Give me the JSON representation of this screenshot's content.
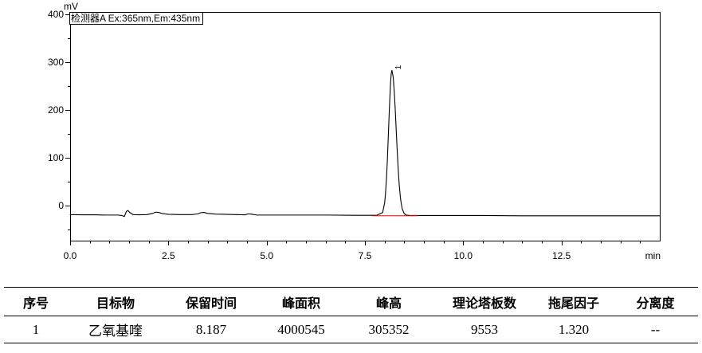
{
  "chart_data": {
    "type": "line",
    "xlabel": "min",
    "ylabel": "mV",
    "xlim": [
      0,
      15
    ],
    "ylim": [
      -73,
      405
    ],
    "x_ticks": [
      0,
      2.5,
      5,
      7.5,
      10,
      12.5
    ],
    "x_tick_labels": [
      "0.0",
      "2.5",
      "5.0",
      "7.5",
      "10.0",
      "12.5"
    ],
    "y_ticks": [
      0,
      100,
      200,
      300,
      400
    ],
    "y_tick_labels": [
      "0",
      "100",
      "200",
      "300",
      "400"
    ],
    "grid": false,
    "legend_placement": "top-left",
    "series": [
      {
        "name": "检测器A Ex:365nm,Em:435nm",
        "color": "#000000",
        "x": [
          0,
          0.3,
          0.6,
          0.9,
          1.2,
          1.32,
          1.38,
          1.43,
          1.47,
          1.52,
          1.6,
          1.75,
          1.95,
          2.1,
          2.18,
          2.25,
          2.35,
          2.5,
          2.8,
          3.1,
          3.25,
          3.33,
          3.4,
          3.5,
          3.7,
          3.95,
          4.2,
          4.45,
          4.53,
          4.6,
          4.75,
          5.2,
          5.8,
          6.5,
          7.2,
          7.8,
          7.95,
          8.0,
          8.02,
          8.05,
          8.07,
          8.1,
          8.12,
          8.15,
          8.17,
          8.187,
          8.22,
          8.25,
          8.27,
          8.3,
          8.32,
          8.35,
          8.37,
          8.4,
          8.42,
          8.45,
          8.5,
          8.55,
          8.65,
          8.9,
          9.5,
          10.5,
          11.5,
          12.5,
          13.5,
          15
        ],
        "y": [
          -18.5,
          -19,
          -19,
          -19.5,
          -19.5,
          -20.5,
          -22.5,
          -12,
          -10,
          -14.5,
          -18.5,
          -19,
          -18.5,
          -16,
          -13.5,
          -14,
          -16.5,
          -18,
          -18.5,
          -18.5,
          -17,
          -14.5,
          -14,
          -16,
          -17.5,
          -18,
          -18.5,
          -19,
          -17,
          -17.5,
          -19.5,
          -19.5,
          -19.5,
          -19.5,
          -20,
          -20,
          -14.3,
          5.4,
          22,
          60,
          95,
          157,
          200,
          255,
          277,
          283,
          268,
          233,
          202,
          150,
          116,
          71,
          46,
          19,
          6,
          -7,
          -16.5,
          -19.5,
          -20.5,
          -20.5,
          -20.5,
          -20.5,
          -21,
          -21,
          -21,
          -21
        ]
      }
    ],
    "peaks": [
      {
        "label": "1",
        "retention_time": 8.187,
        "apex": 283
      }
    ],
    "integration_baseline": {
      "x": [
        7.67,
        8.85
      ],
      "y": [
        -21,
        -21
      ],
      "color": "#ff0000"
    }
  },
  "results_table": {
    "headers": [
      "序号",
      "目标物",
      "保留时间",
      "峰面积",
      "峰高",
      "理论塔板数",
      "拖尾因子",
      "分离度"
    ],
    "rows": [
      [
        "1",
        "乙氧基喹",
        "8.187",
        "4000545",
        "305352",
        "9553",
        "1.320",
        "--"
      ]
    ]
  }
}
